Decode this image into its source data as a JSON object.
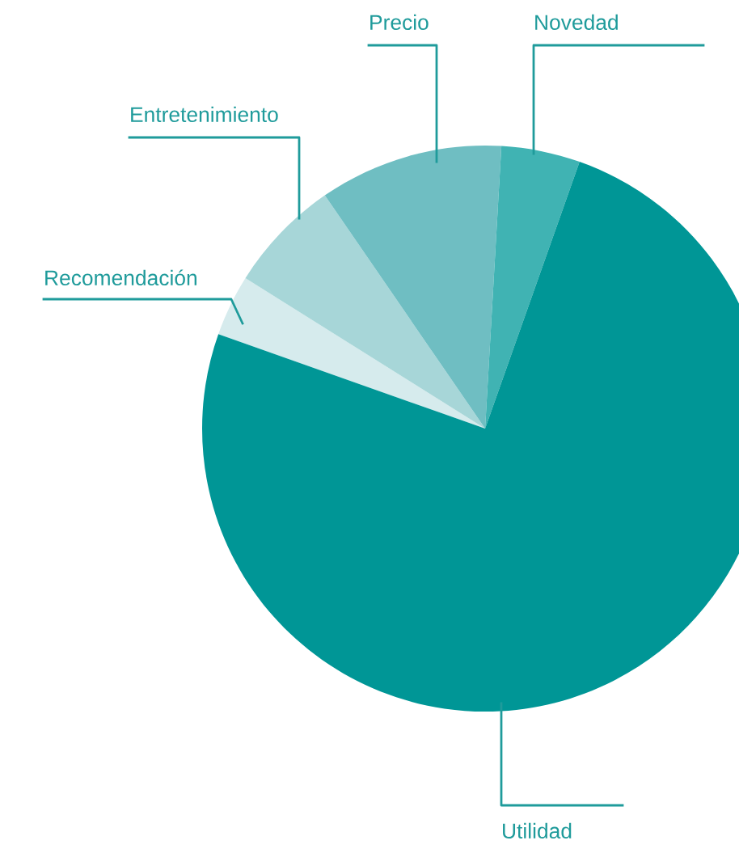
{
  "chart_data": {
    "type": "pie",
    "categories": [
      "Recomendación",
      "Entretenimiento",
      "Precio",
      "Novedad",
      "Utilidad"
    ],
    "values": [
      3.5,
      6.5,
      10.5,
      4.5,
      75
    ],
    "colors": [
      "#d6ebed",
      "#a7d6d8",
      "#6fbec2",
      "#40b3b3",
      "#009696"
    ]
  }
}
